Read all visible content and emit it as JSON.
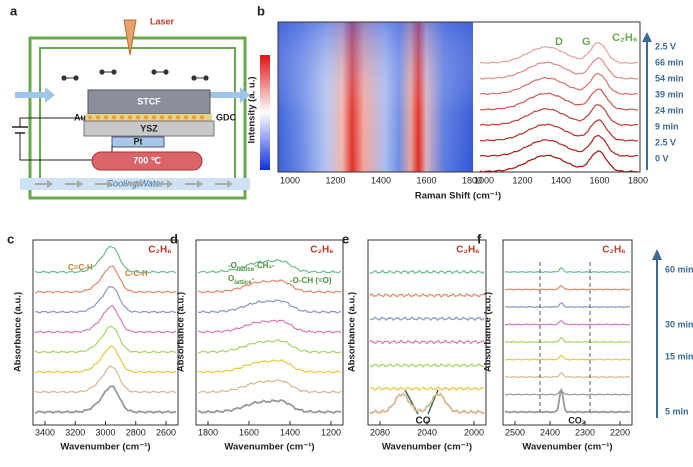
{
  "panels": {
    "a": {
      "label": "a",
      "laser": "Laser",
      "stcf": "STCF",
      "au": "Au",
      "gdc": "GDC",
      "ysz": "YSZ",
      "pt": "Pt",
      "temperature": "700 ℃",
      "cooling": "Cooling Water"
    },
    "b": {
      "label": "b",
      "y_label": "Intensity (a. u.)",
      "x_label": "Raman Shift (cm⁻¹)",
      "map_ticks": [
        "1000",
        "1200",
        "1400",
        "1600",
        "1800"
      ],
      "spectra_ticks": [
        "1000",
        "1200",
        "1400",
        "1600",
        "1800"
      ],
      "peak_d": "D",
      "peak_g": "G",
      "gas": "C₂H₆",
      "times": [
        "2.5 V",
        "66 min",
        "54 min",
        "39 min",
        "24 min",
        "9 min",
        "2.5 V",
        "0 V"
      ]
    },
    "c": {
      "label": "c",
      "y_label": "Absorbance (a.u.)",
      "x_label": "Wavenumber (cm⁻¹)",
      "ticks": [
        "3400",
        "3200",
        "3000",
        "2800",
        "2600"
      ],
      "gas": "C₂H₆",
      "note_1": "C=C-H",
      "note_2": "C-C-H"
    },
    "d": {
      "label": "d",
      "y_label": "Absorbance (a.u.)",
      "x_label": "Wavenumber (cm⁻¹)",
      "ticks": [
        "1800",
        "1600",
        "1400",
        "1200"
      ],
      "gas": "C₂H₆",
      "note_1": [
        {
          "text": "-O"
        },
        {
          "text": "lattice",
          "sub": true
        },
        {
          "text": "-CH₂-"
        }
      ],
      "note_2": [
        {
          "text": "O"
        },
        {
          "text": "lattice",
          "sub": true
        },
        {
          "text": "-"
        }
      ],
      "note_3": "-O-CH (=O)"
    },
    "e": {
      "label": "e",
      "y_label": "Absorbance (a.u.)",
      "x_label": "Wavenumber (cm⁻¹)",
      "ticks": [
        "2080",
        "2040",
        "2000"
      ],
      "gas": "C₂H₆",
      "note": "CO"
    },
    "f": {
      "label": "f",
      "y_label": "Absorbance (a.u.)",
      "x_label": "Wavenumber (cm⁻¹)",
      "ticks": [
        "2500",
        "2400",
        "2300",
        "2200"
      ],
      "gas": "C₂H₆",
      "note": "CO₂",
      "times": [
        "60 min",
        "30 min",
        "15 min",
        "5 min"
      ]
    }
  }
}
